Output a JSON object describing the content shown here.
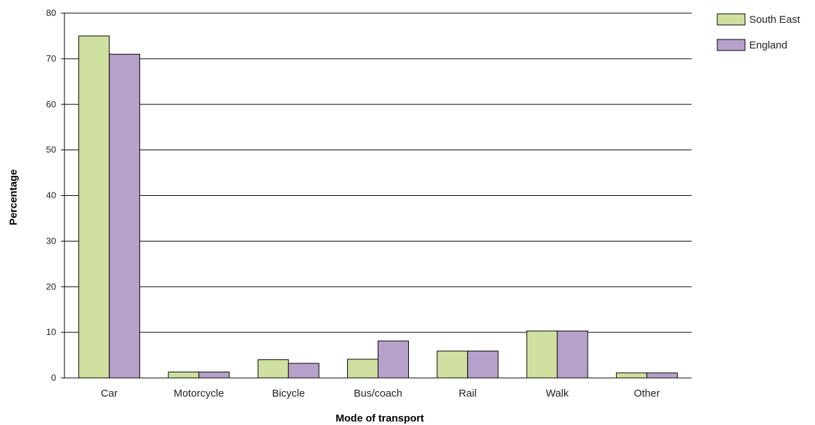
{
  "chart_data": {
    "type": "bar",
    "title": "",
    "xlabel": "Mode of transport",
    "ylabel": "Percentage",
    "ylim": [
      0,
      80
    ],
    "yticks": [
      0,
      10,
      20,
      30,
      40,
      50,
      60,
      70,
      80
    ],
    "grid": true,
    "legend_position": "top-right",
    "categories": [
      "Car",
      "Motorcycle",
      "Bicycle",
      "Bus/coach",
      "Rail",
      "Walk",
      "Other"
    ],
    "series": [
      {
        "name": "South East",
        "color": "#cfe0a0",
        "values": [
          75,
          1.3,
          4,
          4.1,
          5.9,
          10.3,
          1.1
        ]
      },
      {
        "name": "England",
        "color": "#b5a1c9",
        "values": [
          71,
          1.3,
          3.2,
          8.1,
          5.9,
          10.3,
          1.1
        ]
      }
    ]
  }
}
